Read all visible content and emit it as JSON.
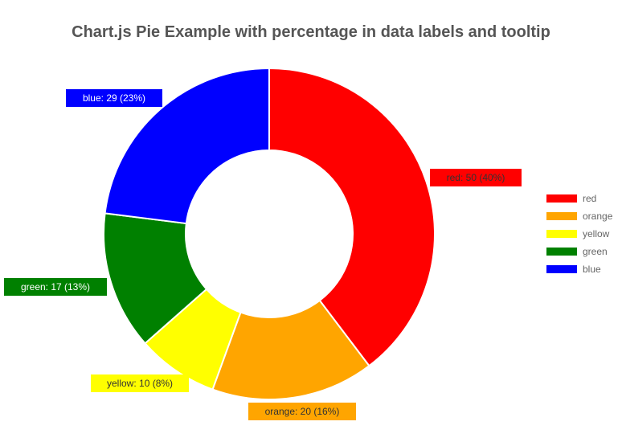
{
  "chart_data": {
    "type": "pie",
    "title": "Chart.js Pie Example with percentage in data labels and tooltip",
    "categories": [
      "red",
      "orange",
      "yellow",
      "green",
      "blue"
    ],
    "values": [
      50,
      20,
      10,
      17,
      29
    ],
    "colors": [
      "#ff0000",
      "#ffa500",
      "#ffff00",
      "#008000",
      "#0000ff"
    ],
    "data_labels": [
      "red: 50 (40%)",
      "orange: 20 (16%)",
      "yellow: 10 (8%)",
      "green: 17 (13%)",
      "blue: 29 (23%)"
    ],
    "label_text_colors": [
      "#333333",
      "#333333",
      "#333333",
      "#ffffff",
      "#ffffff"
    ],
    "legend_position": "right",
    "doughnut": true
  }
}
